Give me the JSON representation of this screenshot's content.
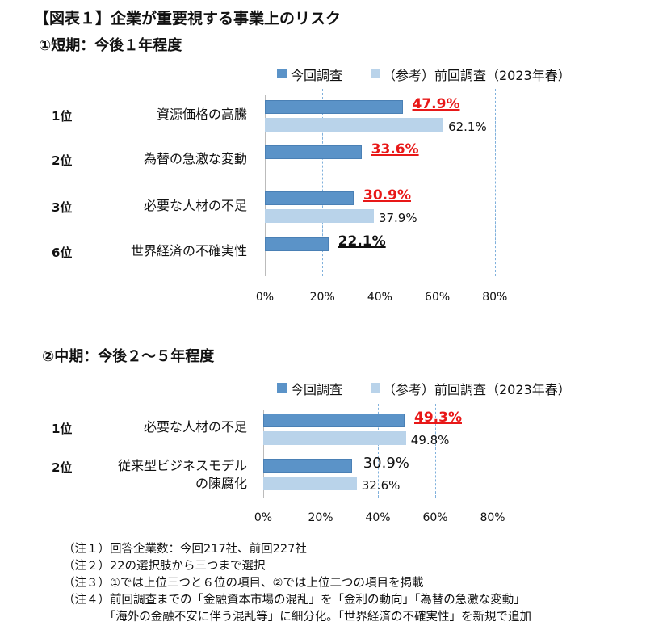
{
  "title": "【図表１】企業が重要視する事業上のリスク",
  "colors": {
    "current": "#5b93c8",
    "previous": "#b9d3ea",
    "highlight": "#e81818",
    "grid": "#7fb0dc"
  },
  "chart_data": [
    {
      "type": "bar",
      "orientation": "horizontal",
      "title": "①短期：今後１年程度",
      "legend": [
        "今回調査",
        "（参考）前回調査（2023年春）"
      ],
      "legend_position": "top",
      "xlim": [
        0,
        80
      ],
      "ticks": [
        "0%",
        "20%",
        "40%",
        "60%",
        "80%"
      ],
      "rows": [
        {
          "rank": "1位",
          "category": [
            "資源価格の高騰"
          ],
          "current": 47.9,
          "current_label": "47.9%",
          "current_style": "red",
          "previous": 62.1,
          "previous_label": "62.1%"
        },
        {
          "rank": "2位",
          "category": [
            "為替の急激な変動"
          ],
          "current": 33.6,
          "current_label": "33.6%",
          "current_style": "red",
          "previous": null,
          "previous_label": null
        },
        {
          "rank": "3位",
          "category": [
            "必要な人材の不足"
          ],
          "current": 30.9,
          "current_label": "30.9%",
          "current_style": "red",
          "previous": 37.9,
          "previous_label": "37.9%"
        },
        {
          "rank": "6位",
          "category": [
            "世界経済の不確実性"
          ],
          "current": 22.1,
          "current_label": "22.1%",
          "current_style": "black",
          "previous": null,
          "previous_label": null
        }
      ]
    },
    {
      "type": "bar",
      "orientation": "horizontal",
      "title": "②中期：今後２～５年程度",
      "legend": [
        "今回調査",
        "（参考）前回調査（2023年春）"
      ],
      "legend_position": "top",
      "xlim": [
        0,
        80
      ],
      "ticks": [
        "0%",
        "20%",
        "40%",
        "60%",
        "80%"
      ],
      "rows": [
        {
          "rank": "1位",
          "category": [
            "必要な人材の不足"
          ],
          "current": 49.3,
          "current_label": "49.3%",
          "current_style": "red",
          "previous": 49.8,
          "previous_label": "49.8%"
        },
        {
          "rank": "2位",
          "category": [
            "従来型ビジネスモデル",
            "の陳腐化"
          ],
          "current": 30.9,
          "current_label": "30.9%",
          "current_style": "plain",
          "previous": 32.6,
          "previous_label": "32.6%"
        }
      ]
    }
  ],
  "notes": [
    "（注１）回答企業数：今回217社、前回227社",
    "（注２）22の選択肢から三つまで選択",
    "（注３）①では上位三つと６位の項目、②では上位二つの項目を掲載",
    "（注４）前回調査までの「金融資本市場の混乱」を「金利の動向」「為替の急激な変動」",
    "　　　　「海外の金融不安に伴う混乱等」に細分化。「世界経済の不確実性」を新規で追加"
  ]
}
